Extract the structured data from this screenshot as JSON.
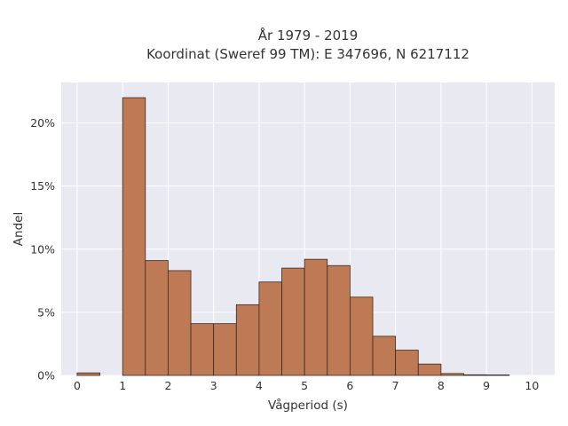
{
  "title_line1": "År 1979 - 2019",
  "title_line2": "Koordinat (Sweref 99 TM): E 347696, N 6217112",
  "chart_data": {
    "type": "bar",
    "title": "År 1979 - 2019\nKoordinat (Sweref 99 TM): E 347696, N 6217112",
    "xlabel": "Vågperiod (s)",
    "ylabel": "Andel",
    "xlim": [
      -0.35,
      10.5
    ],
    "ylim": [
      0,
      23.2
    ],
    "bin_width": 0.5,
    "x_ticks": [
      0,
      1,
      2,
      3,
      4,
      5,
      6,
      7,
      8,
      9,
      10
    ],
    "y_ticks": [
      0,
      5,
      10,
      15,
      20
    ],
    "y_tick_labels": [
      "0%",
      "5%",
      "10%",
      "15%",
      "20%"
    ],
    "bins": [
      {
        "x0": 0.0,
        "x1": 0.5,
        "value": 0.2
      },
      {
        "x0": 1.0,
        "x1": 1.5,
        "value": 22.0
      },
      {
        "x0": 1.5,
        "x1": 2.0,
        "value": 9.1
      },
      {
        "x0": 2.0,
        "x1": 2.5,
        "value": 8.3
      },
      {
        "x0": 2.5,
        "x1": 3.0,
        "value": 4.1
      },
      {
        "x0": 3.0,
        "x1": 3.5,
        "value": 4.1
      },
      {
        "x0": 3.5,
        "x1": 4.0,
        "value": 5.6
      },
      {
        "x0": 4.0,
        "x1": 4.5,
        "value": 7.4
      },
      {
        "x0": 4.5,
        "x1": 5.0,
        "value": 8.5
      },
      {
        "x0": 5.0,
        "x1": 5.5,
        "value": 9.2
      },
      {
        "x0": 5.5,
        "x1": 6.0,
        "value": 8.7
      },
      {
        "x0": 6.0,
        "x1": 6.5,
        "value": 6.2
      },
      {
        "x0": 6.5,
        "x1": 7.0,
        "value": 3.1
      },
      {
        "x0": 7.0,
        "x1": 7.5,
        "value": 2.0
      },
      {
        "x0": 7.5,
        "x1": 8.0,
        "value": 0.9
      },
      {
        "x0": 8.0,
        "x1": 8.5,
        "value": 0.15
      },
      {
        "x0": 8.5,
        "x1": 9.0,
        "value": 0.05
      },
      {
        "x0": 9.0,
        "x1": 9.5,
        "value": 0.04
      }
    ],
    "grid": true,
    "colors": {
      "bar_fill": "#bd7a55",
      "bar_edge": "#3a2a20",
      "plot_background": "#e9e9f1",
      "grid": "#ffffff",
      "text": "#333333"
    }
  }
}
